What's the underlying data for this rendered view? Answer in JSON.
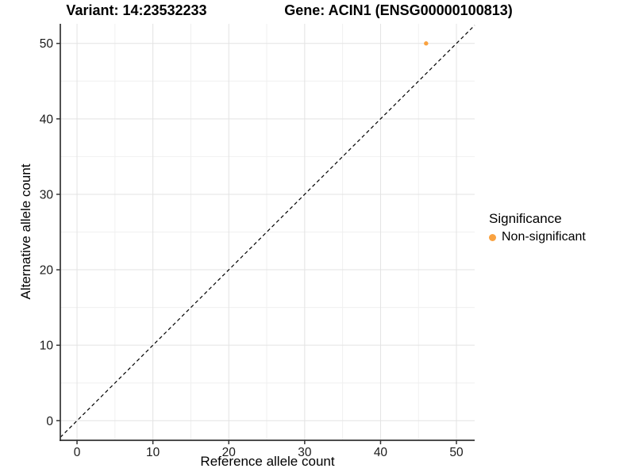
{
  "chart_data": {
    "type": "scatter",
    "title_left": "Variant: 14:23532233",
    "title_right": "Gene: ACIN1 (ENSG00000100813)",
    "xlabel": "Reference allele count",
    "ylabel": "Alternative allele count",
    "xlim": [
      -2.2,
      52.4
    ],
    "ylim": [
      -2.6,
      52.6
    ],
    "x_ticks": [
      0,
      10,
      20,
      30,
      40,
      50
    ],
    "y_ticks": [
      0,
      10,
      20,
      30,
      40,
      50
    ],
    "x_minor_ticks": [
      5,
      15,
      25,
      35,
      45
    ],
    "y_minor_ticks": [
      5,
      15,
      25,
      35,
      45
    ],
    "grid": "major+minor",
    "legend_position": "right",
    "legend": {
      "title": "Significance",
      "items": [
        {
          "label": "Non-significant",
          "color": "#F9A240"
        }
      ]
    },
    "series": [
      {
        "name": "Non-significant",
        "color": "#F9A240",
        "marker_radius": 2.7,
        "points": [
          {
            "x": 46,
            "y": 50
          }
        ]
      }
    ],
    "reference_line": {
      "slope": 1,
      "intercept": 0,
      "style": "dashed",
      "color": "#000000",
      "description": "y = x identity line"
    }
  }
}
